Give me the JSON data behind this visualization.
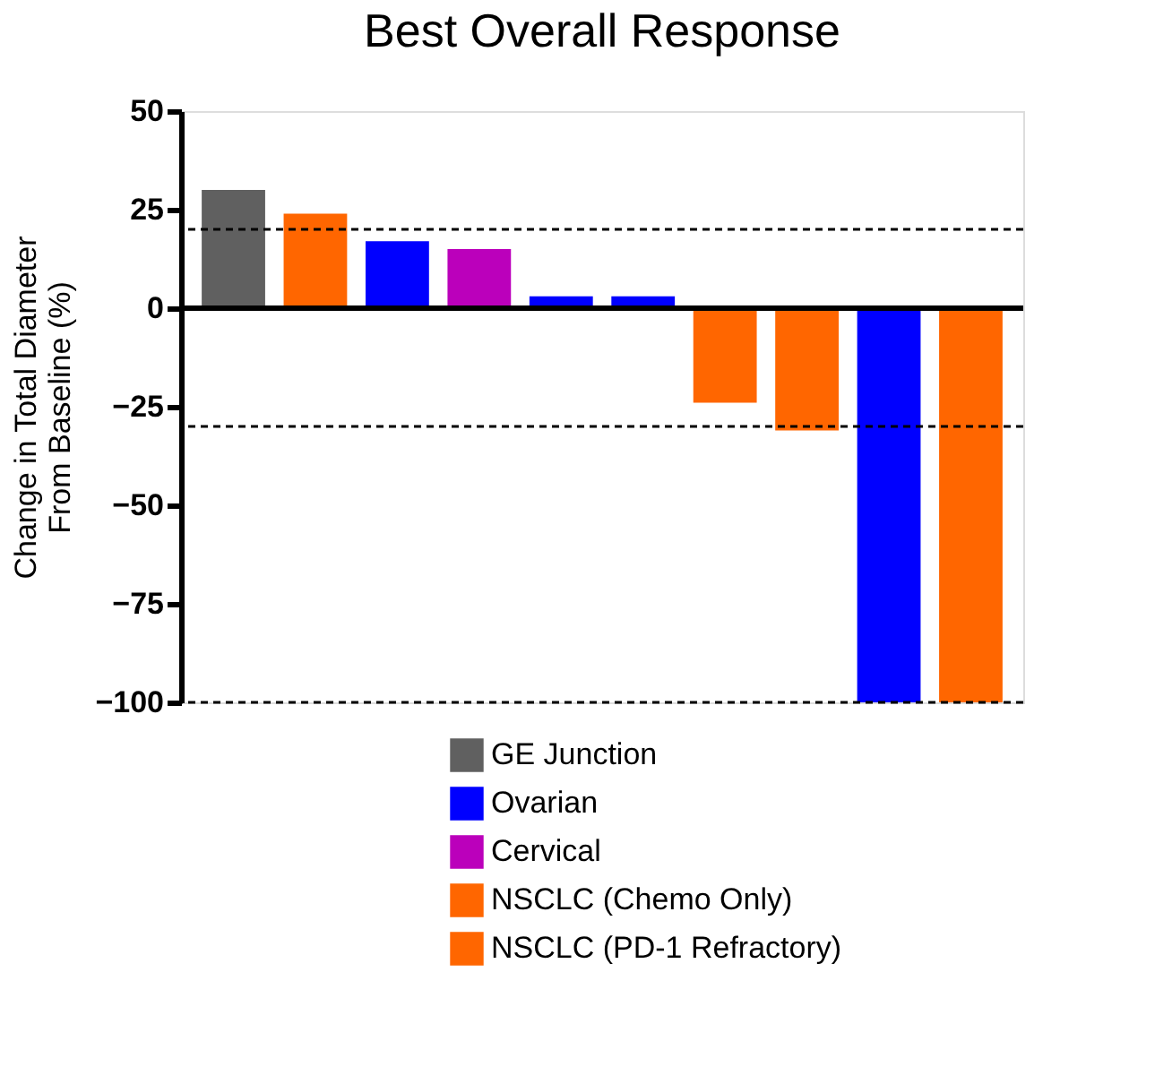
{
  "chart_data": {
    "type": "bar",
    "title": "Best Overall Response",
    "ylabel": "Change in Total Diameter\nFrom Baseline (%)",
    "categories": [
      null,
      null,
      null,
      null,
      null,
      null,
      null,
      null,
      null,
      null
    ],
    "series": [
      {
        "name": "GE Junction",
        "color": "#606060",
        "values": [
          30,
          null,
          null,
          null,
          null,
          null,
          null,
          null,
          null,
          null
        ]
      },
      {
        "name": "Ovarian",
        "color": "#0000ff",
        "values": [
          null,
          null,
          17,
          null,
          3,
          3,
          null,
          null,
          -100,
          null
        ]
      },
      {
        "name": "Cervical",
        "color": "#bb00bb",
        "values": [
          null,
          null,
          null,
          15,
          null,
          null,
          null,
          null,
          null,
          null
        ]
      },
      {
        "name": "NSCLC (Chemo Only)",
        "color": "#ff6600",
        "values": [
          null,
          24,
          null,
          null,
          null,
          null,
          null,
          null,
          null,
          null
        ]
      },
      {
        "name": "NSCLC (PD-1 Refractory)",
        "color": "#ff6600",
        "values": [
          null,
          null,
          null,
          null,
          null,
          null,
          -24,
          -31,
          null,
          -100
        ]
      }
    ],
    "ylim": [
      -100,
      50
    ],
    "yticks": [
      -100,
      -75,
      -50,
      -25,
      0,
      25,
      50
    ],
    "ref_lines": [
      {
        "axis": "y",
        "value": 20,
        "line_style": "dashed",
        "color": "#000000"
      },
      {
        "axis": "y",
        "value": -30,
        "line_style": "dashed",
        "color": "#000000"
      },
      {
        "axis": "y",
        "value": -100,
        "line_style": "dashed",
        "color": "#000000"
      },
      {
        "axis": "y",
        "value": 0,
        "line_style": "solid",
        "color": "#000000"
      }
    ],
    "tick_labels": "y",
    "legend": "bottom",
    "grid": false
  }
}
